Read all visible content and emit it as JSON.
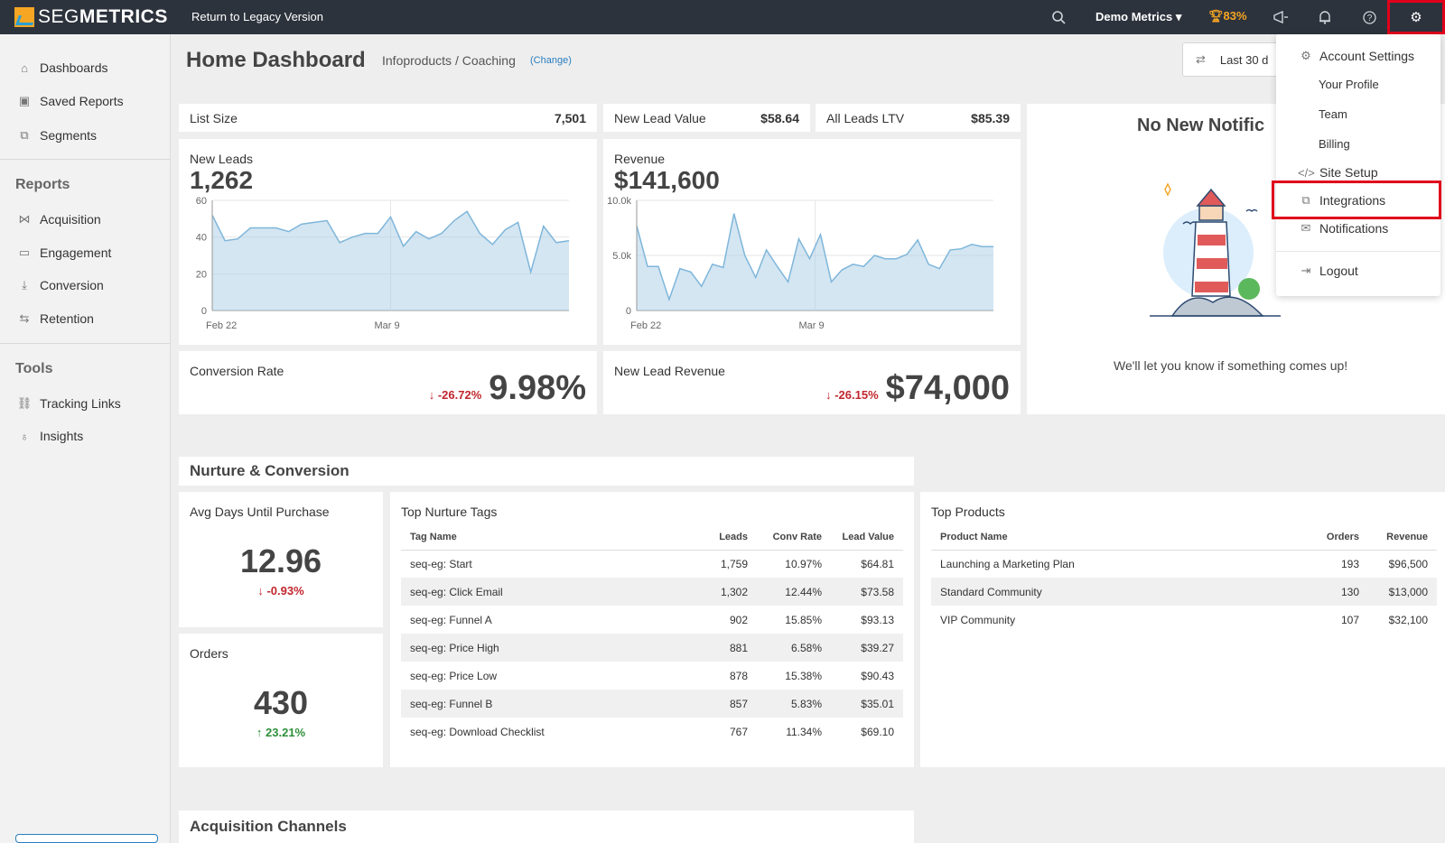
{
  "topbar": {
    "logo_prefix": "SEG",
    "logo_suffix": "METRICS",
    "legacy_link": "Return to Legacy Version",
    "account_menu": "Demo Metrics",
    "score": "83%",
    "icons": [
      "search-icon",
      "megaphone-icon",
      "bell-icon",
      "help-icon",
      "gear-icon"
    ]
  },
  "sidebar": {
    "top_items": [
      {
        "label": "Dashboards",
        "icon": "home-icon"
      },
      {
        "label": "Saved Reports",
        "icon": "saved-reports-icon"
      },
      {
        "label": "Segments",
        "icon": "puzzle-icon"
      }
    ],
    "reports_heading": "Reports",
    "reports_items": [
      {
        "label": "Acquisition",
        "icon": "share-icon"
      },
      {
        "label": "Engagement",
        "icon": "chat-icon"
      },
      {
        "label": "Conversion",
        "icon": "download-icon"
      },
      {
        "label": "Retention",
        "icon": "repeat-icon"
      }
    ],
    "tools_heading": "Tools",
    "tools_items": [
      {
        "label": "Tracking Links",
        "icon": "link-icon"
      },
      {
        "label": "Insights",
        "icon": "lightbulb-icon"
      }
    ]
  },
  "header": {
    "title": "Home Dashboard",
    "subtitle": "Infoproducts / Coaching",
    "change_link": "(Change)",
    "date_range": "Last 30 d"
  },
  "stats": {
    "list_size": {
      "label": "List Size",
      "value": "7,501"
    },
    "new_lead_value": {
      "label": "New Lead Value",
      "value": "$58.64"
    },
    "all_leads_ltv": {
      "label": "All Leads LTV",
      "value": "$85.39"
    },
    "new_leads": {
      "label": "New Leads",
      "value": "1,262"
    },
    "revenue": {
      "label": "Revenue",
      "value": "$141,600"
    },
    "conversion_rate": {
      "label": "Conversion Rate",
      "change": "-26.72%",
      "value": "9.98%"
    },
    "new_lead_revenue": {
      "label": "New Lead Revenue",
      "change": "-26.15%",
      "value": "$74,000"
    }
  },
  "chart_data": [
    {
      "type": "area",
      "title": "New Leads",
      "x_ticks": [
        "Feb 22",
        "Mar 9"
      ],
      "y_ticks": [
        "60",
        "40",
        "20",
        "0"
      ],
      "ylim": [
        0,
        60
      ],
      "values": [
        52,
        38,
        39,
        45,
        45,
        45,
        43,
        47,
        48,
        49,
        37,
        40,
        42,
        42,
        51,
        35,
        43,
        39,
        42,
        49,
        54,
        42,
        36,
        44,
        48,
        21,
        46,
        37,
        38
      ],
      "color": "#a9cde6"
    },
    {
      "type": "area",
      "title": "Revenue",
      "x_ticks": [
        "Feb 22",
        "Mar 9"
      ],
      "y_ticks": [
        "10.0k",
        "5.0k",
        "0"
      ],
      "ylim": [
        0,
        10000
      ],
      "values": [
        7700,
        4000,
        4000,
        1000,
        3800,
        3500,
        2200,
        4200,
        3900,
        8800,
        5000,
        3000,
        5500,
        4000,
        2600,
        6500,
        4700,
        6900,
        2600,
        3700,
        4200,
        4000,
        5000,
        4700,
        4700,
        5100,
        6400,
        4200,
        3800,
        5500,
        5600,
        6000,
        5800,
        5800
      ],
      "color": "#a9cde6"
    }
  ],
  "notifications_panel": {
    "title": "No New Notific",
    "message": "We'll let you know if something comes up!",
    "illustration": "lighthouse-illustration"
  },
  "nurture": {
    "section_title": "Nurture & Conversion",
    "avg_days": {
      "label": "Avg Days Until Purchase",
      "value": "12.96",
      "change": "-0.93%"
    },
    "orders": {
      "label": "Orders",
      "value": "430",
      "change": "23.21%"
    },
    "tags": {
      "title": "Top Nurture Tags",
      "columns": [
        "Tag Name",
        "Leads",
        "Conv Rate",
        "Lead Value"
      ],
      "rows": [
        [
          "seq-eg: Start",
          "1,759",
          "10.97%",
          "$64.81"
        ],
        [
          "seq-eg: Click Email",
          "1,302",
          "12.44%",
          "$73.58"
        ],
        [
          "seq-eg: Funnel A",
          "902",
          "15.85%",
          "$93.13"
        ],
        [
          "seq-eg: Price High",
          "881",
          "6.58%",
          "$39.27"
        ],
        [
          "seq-eg: Price Low",
          "878",
          "15.38%",
          "$90.43"
        ],
        [
          "seq-eg: Funnel B",
          "857",
          "5.83%",
          "$35.01"
        ],
        [
          "seq-eg: Download Checklist",
          "767",
          "11.34%",
          "$69.10"
        ]
      ]
    },
    "products": {
      "title": "Top Products",
      "columns": [
        "Product Name",
        "Orders",
        "Revenue"
      ],
      "rows": [
        [
          "Launching a Marketing Plan",
          "193",
          "$96,500"
        ],
        [
          "Standard Community",
          "130",
          "$13,000"
        ],
        [
          "VIP Community",
          "107",
          "$32,100"
        ]
      ]
    }
  },
  "acquisition": {
    "section_title": "Acquisition Channels"
  },
  "settings_menu": {
    "account_settings": "Account Settings",
    "your_profile": "Your Profile",
    "team": "Team",
    "billing": "Billing",
    "site_setup": "Site Setup",
    "integrations": "Integrations",
    "notifications": "Notifications",
    "logout": "Logout"
  },
  "colors": {
    "topbar": "#2d333d",
    "highlight": "#e0001b",
    "accent": "#f6a623",
    "link": "#2a7fbf",
    "negative": "#c0262d",
    "positive": "#2f8f3a",
    "chart_fill": "#a9cde6"
  }
}
